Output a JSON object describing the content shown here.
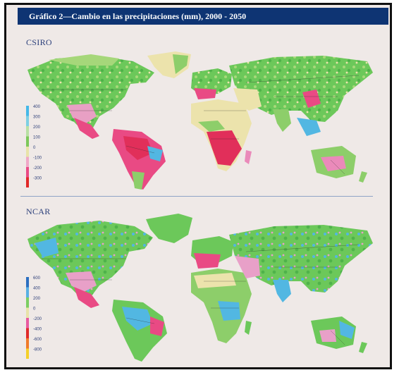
{
  "title": "Gráfico 2—Cambio en las precipitaciones (mm), 2000 - 2050",
  "panels": [
    {
      "label": "CSIRO",
      "legend": {
        "ticks": [
          "400",
          "300",
          "200",
          "100",
          "0",
          "-100",
          "-200",
          "-300"
        ],
        "colors": [
          "#45b8e8",
          "#7dcfe3",
          "#b9e0a4",
          "#7dc85a",
          "#e8e3a8",
          "#f0a8c8",
          "#ea4a85",
          "#e12828"
        ]
      }
    },
    {
      "label": "NCAR",
      "legend": {
        "ticks": [
          "600",
          "400",
          "200",
          "0",
          "-200",
          "-400",
          "-600",
          "-800"
        ],
        "colors": [
          "#2c6fc0",
          "#58b0e4",
          "#7cce62",
          "#e8e3a8",
          "#e85aa0",
          "#e02a2a",
          "#f07a2a",
          "#f5d02a"
        ]
      }
    }
  ],
  "colors": {
    "frame_bg": "#efe9e7",
    "title_bg": "#0e3473",
    "wet": "#6cc85a",
    "dry": "#e94a84",
    "neutral": "#ece3ac",
    "very_wet": "#52b7e2",
    "border_line": "#2a2a2a"
  }
}
